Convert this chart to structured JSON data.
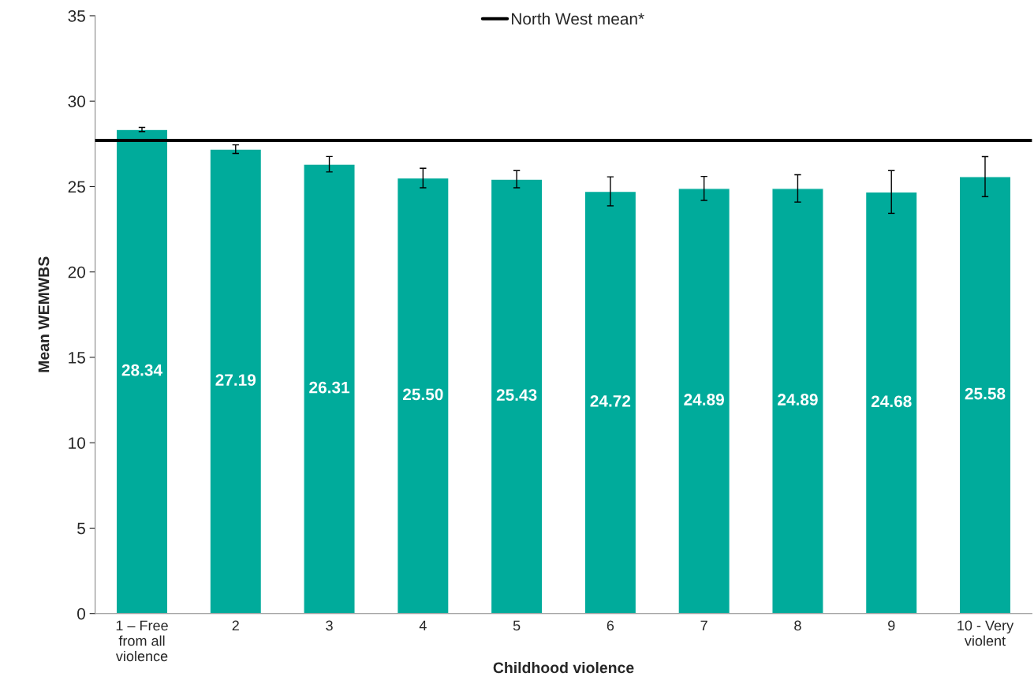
{
  "chart_data": {
    "type": "bar",
    "xlabel": "Childhood violence",
    "ylabel": "Mean WEMWBS",
    "categories": [
      "1 – Free\nfrom all\nviolence",
      "2",
      "3",
      "4",
      "5",
      "6",
      "7",
      "8",
      "9",
      "10 - Very\nviolent"
    ],
    "values": [
      28.34,
      27.19,
      26.31,
      25.5,
      25.43,
      24.72,
      24.89,
      24.89,
      24.68,
      25.58
    ],
    "errors": [
      0.12,
      0.25,
      0.45,
      0.57,
      0.5,
      0.85,
      0.7,
      0.8,
      1.25,
      1.17
    ],
    "value_labels": [
      "28.34",
      "27.19",
      "26.31",
      "25.50",
      "25.43",
      "24.72",
      "24.89",
      "24.89",
      "24.68",
      "25.58"
    ],
    "color": "#00ab9b",
    "ylim": [
      0,
      35
    ],
    "yticks": [
      0,
      5,
      10,
      15,
      20,
      25,
      30,
      35
    ],
    "grid": false,
    "legend": "top",
    "ref_lines": [
      {
        "axis": "y",
        "value": 27.7,
        "label": "North West mean*",
        "color": "#000000",
        "line_style": "solid"
      }
    ]
  }
}
